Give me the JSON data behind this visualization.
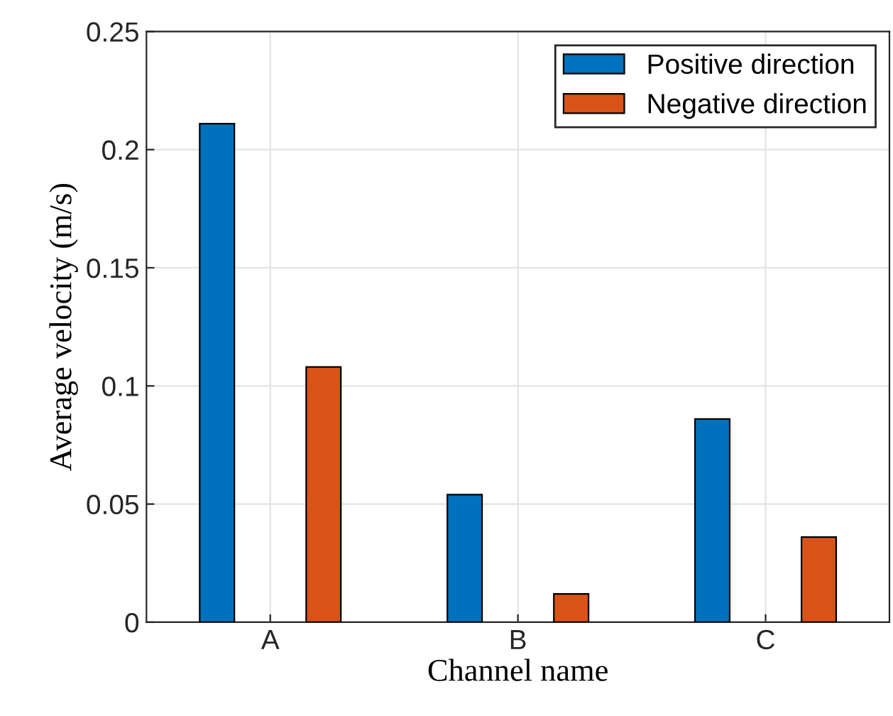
{
  "chart_data": {
    "type": "bar",
    "xlabel": "Channel name",
    "ylabel": "Average velocity (m/s)",
    "categories": [
      "A",
      "B",
      "C"
    ],
    "series": [
      {
        "name": "Positive direction",
        "color": "#0072bd",
        "values": [
          0.211,
          0.054,
          0.086
        ]
      },
      {
        "name": "Negative direction",
        "color": "#d95319",
        "values": [
          0.108,
          0.012,
          0.036
        ]
      }
    ],
    "ylim": [
      0,
      0.25
    ],
    "yticks": [
      0,
      0.05,
      0.1,
      0.15,
      0.2,
      0.25
    ],
    "grid": true,
    "legend": "top right"
  }
}
